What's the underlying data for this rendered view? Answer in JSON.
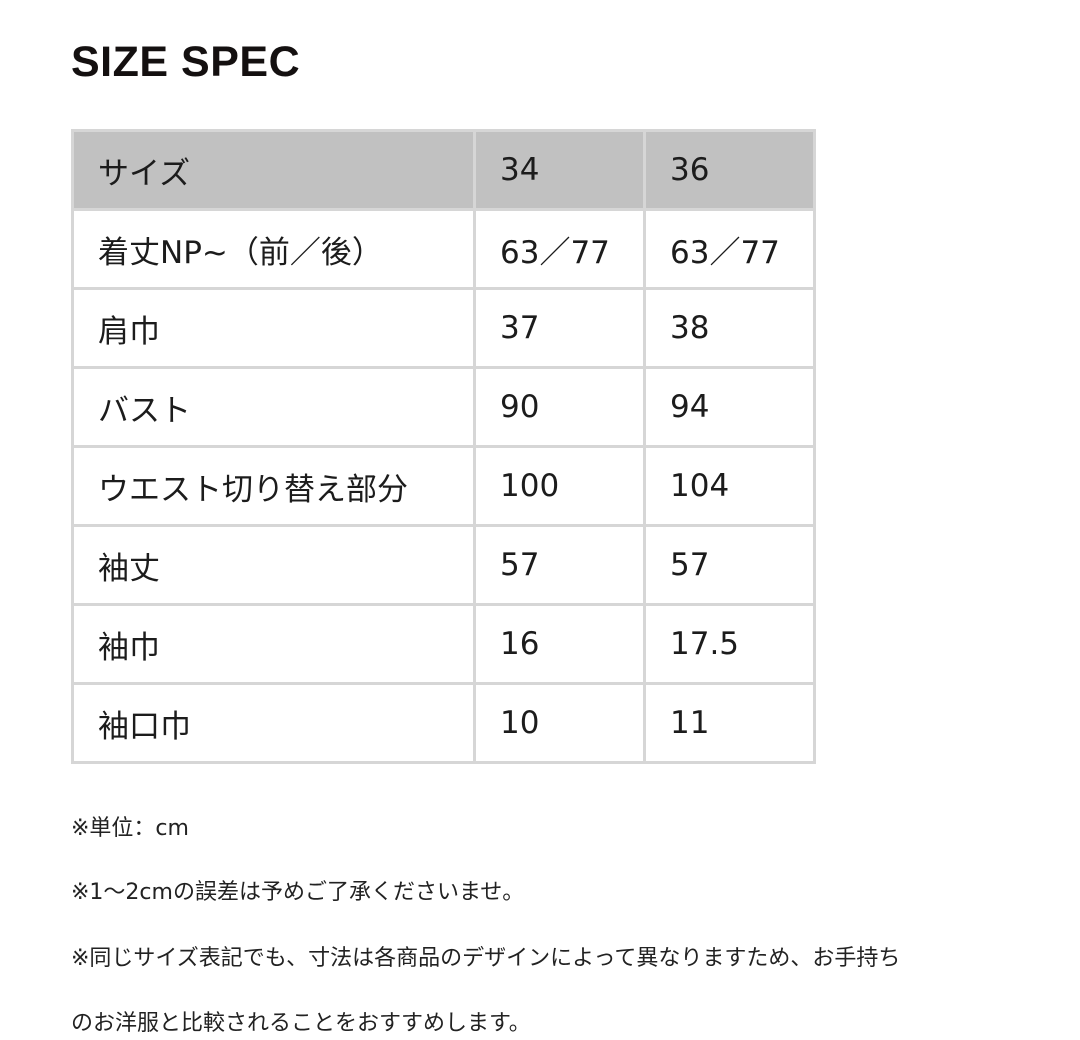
{
  "title": "SIZE SPEC",
  "table": {
    "header": [
      "サイズ",
      "34",
      "36"
    ],
    "rows": [
      [
        "着丈NP~（前／後）",
        "63／77",
        "63／77"
      ],
      [
        "肩巾",
        "37",
        "38"
      ],
      [
        "バスト",
        "90",
        "94"
      ],
      [
        "ウエスト切り替え部分",
        "100",
        "104"
      ],
      [
        "袖丈",
        "57",
        "57"
      ],
      [
        "袖巾",
        "16",
        "17.5"
      ],
      [
        "袖口巾",
        "10",
        "11"
      ]
    ]
  },
  "notes": [
    "※単位：cm",
    "※1〜2cmの誤差は予めご了承くださいませ。",
    "※同じサイズ表記でも、寸法は各商品のデザインによって異なりますため、お手持ち",
    "のお洋服と比較されることをおすすめします。"
  ]
}
